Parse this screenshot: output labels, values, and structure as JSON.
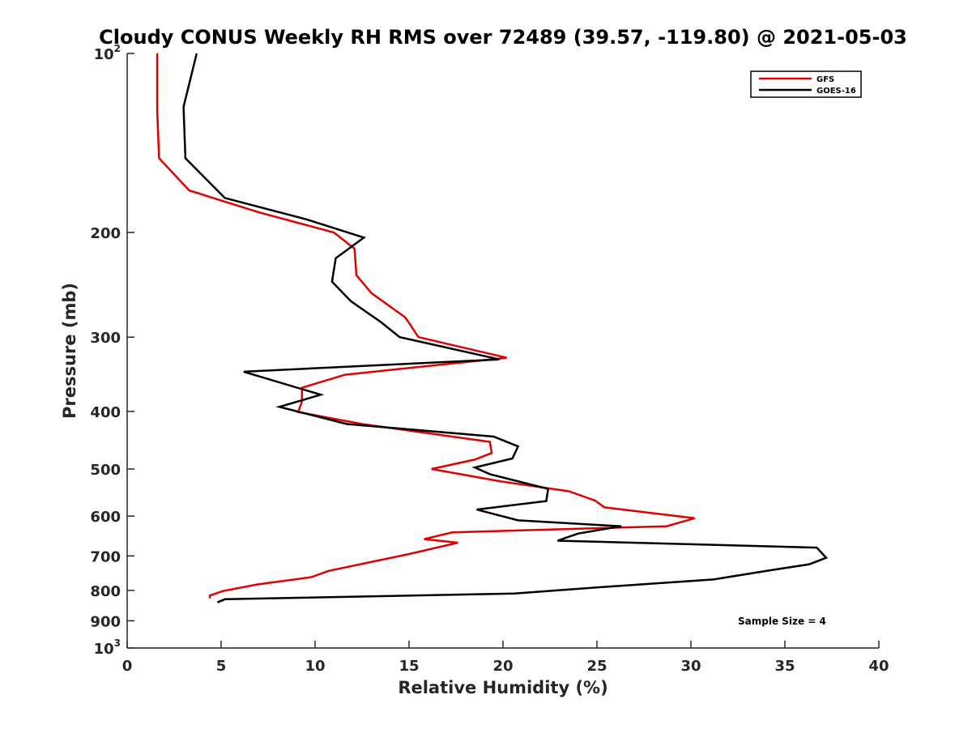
{
  "chart_data": {
    "type": "line",
    "title": "Cloudy CONUS Weekly RH RMS over 72489 (39.57, -119.80) @ 2021-05-03",
    "xlabel": "Relative Humidity (%)",
    "ylabel": "Pressure (mb)",
    "xlim": [
      0,
      40
    ],
    "ylim": [
      100,
      1000
    ],
    "yscale": "log",
    "y_reversed": true,
    "x_ticks": [
      0,
      5,
      10,
      15,
      20,
      25,
      30,
      35,
      40
    ],
    "x_tick_labels": [
      "0",
      "5",
      "10",
      "15",
      "20",
      "25",
      "30",
      "35",
      "40"
    ],
    "y_ticks": [
      100,
      200,
      300,
      400,
      500,
      600,
      700,
      800,
      900,
      1000
    ],
    "y_tick_labels": [
      {
        "base": "10",
        "exp": "2"
      },
      {
        "base": "200",
        "exp": ""
      },
      {
        "base": "300",
        "exp": ""
      },
      {
        "base": "400",
        "exp": ""
      },
      {
        "base": "500",
        "exp": ""
      },
      {
        "base": "600",
        "exp": ""
      },
      {
        "base": "700",
        "exp": ""
      },
      {
        "base": "800",
        "exp": ""
      },
      {
        "base": "900",
        "exp": ""
      },
      {
        "base": "10",
        "exp": "3"
      }
    ],
    "legend_position": "top-right",
    "annotation": "Sample Size = 4",
    "series": [
      {
        "name": "GFS",
        "color": "#e00000",
        "points": [
          [
            1.6,
            100
          ],
          [
            1.6,
            125
          ],
          [
            1.7,
            150
          ],
          [
            3.3,
            170
          ],
          [
            7,
            185
          ],
          [
            11,
            200
          ],
          [
            12.1,
            213
          ],
          [
            12.2,
            236
          ],
          [
            13,
            253
          ],
          [
            14.8,
            278
          ],
          [
            15.5,
            300
          ],
          [
            20.2,
            325
          ],
          [
            11.6,
            347
          ],
          [
            9.3,
            365
          ],
          [
            9.3,
            385
          ],
          [
            9.1,
            401
          ],
          [
            12.5,
            420
          ],
          [
            19.3,
            450
          ],
          [
            19.4,
            470
          ],
          [
            18.5,
            482
          ],
          [
            16.2,
            500
          ],
          [
            19.8,
            524
          ],
          [
            23.5,
            545
          ],
          [
            24.9,
            565
          ],
          [
            25.4,
            580
          ],
          [
            30.2,
            605
          ],
          [
            28.7,
            624
          ],
          [
            17.3,
            639
          ],
          [
            15.8,
            656
          ],
          [
            17.6,
            665
          ],
          [
            15,
            695
          ],
          [
            12.4,
            723
          ],
          [
            10.7,
            742
          ],
          [
            9.8,
            760
          ],
          [
            6.9,
            782
          ],
          [
            5.1,
            802
          ],
          [
            4.4,
            816
          ],
          [
            4.4,
            825
          ]
        ]
      },
      {
        "name": "GOES-16",
        "color": "#000000",
        "points": [
          [
            3.7,
            100
          ],
          [
            3,
            123
          ],
          [
            3.1,
            150
          ],
          [
            5.2,
            175
          ],
          [
            9.5,
            190
          ],
          [
            12.6,
            204
          ],
          [
            11.1,
            221
          ],
          [
            10.9,
            242
          ],
          [
            11.9,
            261
          ],
          [
            13.5,
            283
          ],
          [
            14.5,
            300
          ],
          [
            19.8,
            327
          ],
          [
            6.2,
            343
          ],
          [
            10.3,
            375
          ],
          [
            8.1,
            393
          ],
          [
            11.7,
            420
          ],
          [
            19.5,
            441
          ],
          [
            20.8,
            458
          ],
          [
            20.5,
            480
          ],
          [
            18.5,
            497
          ],
          [
            19.3,
            510
          ],
          [
            22.4,
            540
          ],
          [
            22.3,
            566
          ],
          [
            18.6,
            585
          ],
          [
            20.8,
            610
          ],
          [
            26.3,
            624
          ],
          [
            24,
            642
          ],
          [
            22.9,
            660
          ],
          [
            36.7,
            678
          ],
          [
            37.2,
            705
          ],
          [
            36.3,
            723
          ],
          [
            34,
            742
          ],
          [
            31.2,
            767
          ],
          [
            25.2,
            790
          ],
          [
            20.6,
            810
          ],
          [
            5.2,
            828
          ],
          [
            4.8,
            838
          ]
        ]
      }
    ]
  }
}
